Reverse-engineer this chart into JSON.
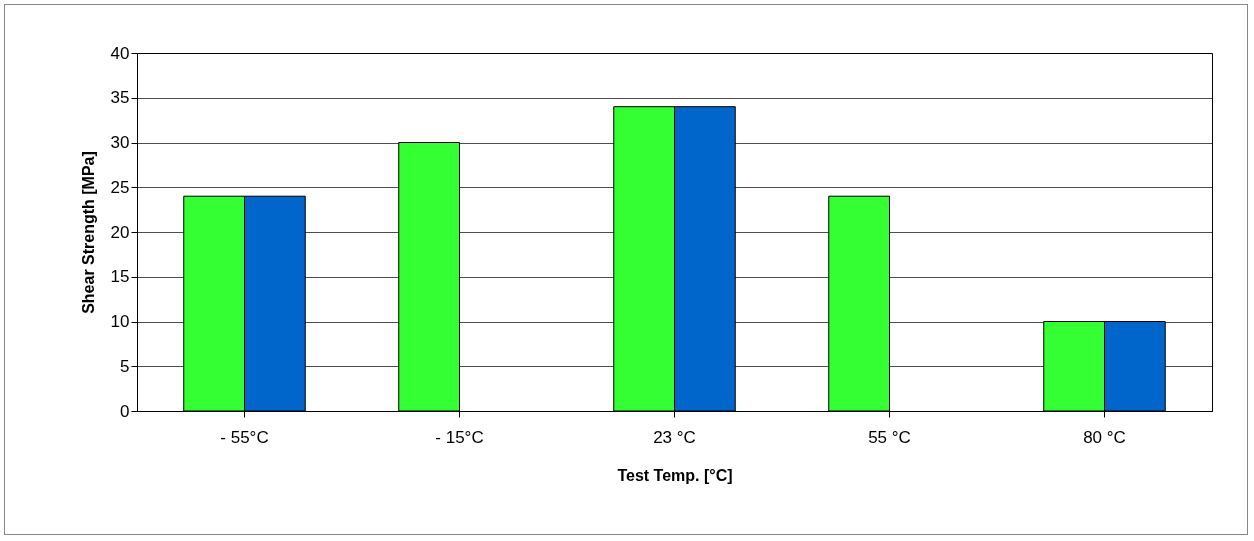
{
  "chart_data": {
    "type": "bar",
    "xlabel": "Test Temp. [°C]",
    "ylabel": "Shear Strength [MPa]",
    "categories": [
      "- 55°C",
      "- 15°C",
      "23 °C",
      "55 °C",
      "80 °C"
    ],
    "series": [
      {
        "color": "#33ff33",
        "values": [
          24,
          30,
          34,
          24,
          10
        ]
      },
      {
        "color": "#0066cc",
        "values": [
          24,
          null,
          34,
          null,
          10
        ]
      }
    ],
    "ylim": [
      0,
      40
    ],
    "yticks": [
      0,
      5,
      10,
      15,
      20,
      25,
      30,
      35,
      40
    ],
    "grid": "y"
  }
}
